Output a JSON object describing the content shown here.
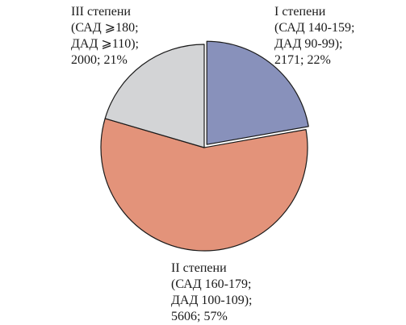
{
  "chart_data": {
    "type": "pie",
    "slices": [
      {
        "name": "I степени",
        "detail_lines": [
          "(САД 140-159;",
          "ДАД 90-99);",
          "2171; 22%"
        ],
        "count": 2171,
        "percent": 22,
        "color": "#8891bb"
      },
      {
        "name": "II степени",
        "detail_lines": [
          "(САД 160-179;",
          "ДАД 100-109);",
          "5606; 57%"
        ],
        "count": 5606,
        "percent": 57,
        "color": "#e3937a"
      },
      {
        "name": "III степени",
        "detail_lines": [
          "(САД ⩾180;",
          "ДАД ⩾110);",
          "2000; 21%"
        ],
        "count": 2000,
        "percent": 21,
        "color": "#d3d4d6"
      }
    ],
    "start_angle_deg": 0,
    "direction": "clockwise",
    "exploded_slice": "I степени",
    "outline_color": "#1a1a1a"
  }
}
